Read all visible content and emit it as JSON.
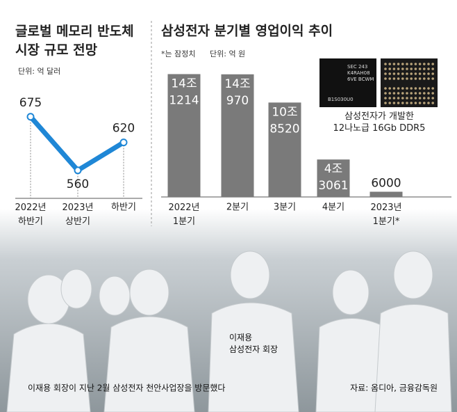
{
  "chart_data": [
    {
      "type": "line",
      "title": "글로벌 메모리 반도체\n시장 규모 전망",
      "subtitle": "단위: 억 달러",
      "categories": [
        "2022년\n하반기",
        "2023년\n상반기",
        "하반기"
      ],
      "values": [
        675,
        560,
        620
      ],
      "color": "#1f87d6",
      "ylim": [
        500,
        700
      ]
    },
    {
      "type": "bar",
      "title": "삼성전자 분기별 영업이익 추이",
      "note": "*는 잠정치",
      "subtitle": "단위: 억 원",
      "categories": [
        "2022년\n1분기",
        "2분기",
        "3분기",
        "4분기",
        "2023년\n1분기*"
      ],
      "values": [
        141214,
        140970,
        108520,
        43061,
        6000
      ],
      "value_labels": [
        "14조\n1214",
        "14조\n970",
        "10조\n8520",
        "4조\n3061",
        "6000"
      ],
      "color": "#7a7a7a",
      "ylim": [
        0,
        140000
      ]
    }
  ],
  "chip": {
    "text": [
      "SEC 243",
      "K4RAH08",
      "6VE BCWM",
      "B1S030U0"
    ],
    "caption": "삼성전자가 개발한\n12나노급 16Gb DDR5"
  },
  "photo": {
    "person": "이재용\n삼성전자 회장",
    "caption": "이재용 회장이 지난 2월 삼성전자 천안사업장을 방문했다",
    "source": "자료: 옴디아, 금융감독원"
  }
}
